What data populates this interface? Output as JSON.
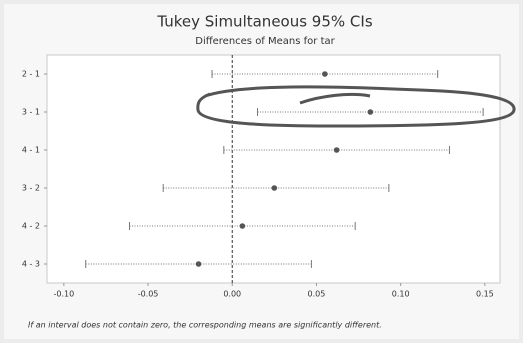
{
  "chart_data": {
    "type": "interval",
    "title": "Tukey Simultaneous 95% CIs",
    "subtitle": "Differences of Means for tar",
    "categories": [
      "2 - 1",
      "3 - 1",
      "4 - 1",
      "3 - 2",
      "4 - 2",
      "4 - 3"
    ],
    "values": [
      0.055,
      0.082,
      0.062,
      0.025,
      0.006,
      -0.02
    ],
    "lower": [
      -0.012,
      0.015,
      -0.005,
      -0.041,
      -0.061,
      -0.087
    ],
    "upper": [
      0.122,
      0.149,
      0.129,
      0.093,
      0.073,
      0.047
    ],
    "color": "#555555",
    "reference_x": 0,
    "xlim": [
      -0.11,
      0.159
    ],
    "xticks": [
      {
        "value": -0.1,
        "label": "-0.10"
      },
      {
        "value": -0.05,
        "label": "-0.05"
      },
      {
        "value": 0,
        "label": "0.00"
      },
      {
        "value": 0.05,
        "label": "0.05"
      },
      {
        "value": 0.1,
        "label": "0.10"
      },
      {
        "value": 0.15,
        "label": "0.15"
      }
    ],
    "footnote": "If an interval does not contain zero, the corresponding means are significantly different."
  }
}
